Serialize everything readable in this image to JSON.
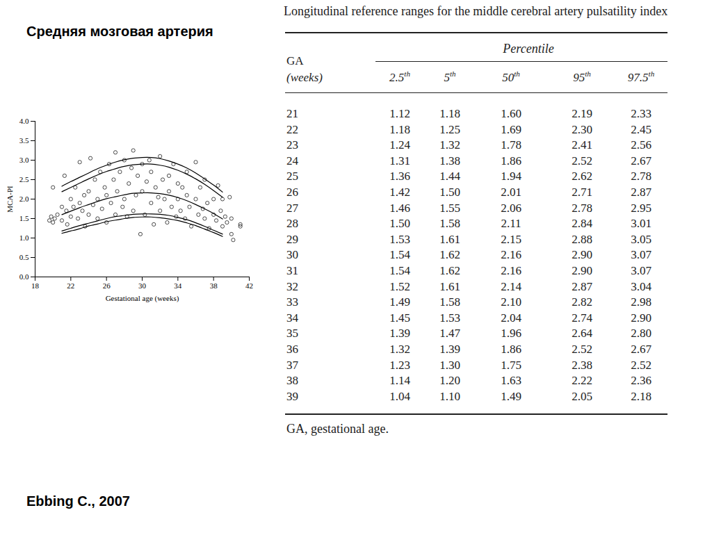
{
  "slide_title": "Средняя мозговая артерия",
  "citation": "Ebbing C., 2007",
  "chart_data": {
    "type": "scatter",
    "x_label": "Gestational age (weeks)",
    "y_label": "MCA-PI",
    "xlim": [
      18,
      42
    ],
    "xticks": [
      18,
      22,
      26,
      30,
      34,
      38,
      42
    ],
    "ylim": [
      0,
      4
    ],
    "yticks": [
      {
        "value": 0,
        "label": "0.0"
      },
      {
        "value": 0.5,
        "label": "0.5"
      },
      {
        "value": 1,
        "label": "1.0"
      },
      {
        "value": 1.5,
        "label": "1.5"
      },
      {
        "value": 2,
        "label": "2.0"
      },
      {
        "value": 2.5,
        "label": "2.5"
      },
      {
        "value": 3,
        "label": "3.0"
      },
      {
        "value": 3.5,
        "label": "3.5"
      },
      {
        "value": 4,
        "label": "4.0"
      }
    ],
    "grid": false,
    "series": [
      {
        "type": "scatter",
        "marker": "circle",
        "color": "#000000",
        "x": [
          19.6,
          19.8,
          20,
          20.2,
          20,
          20.5,
          21,
          21,
          21.3,
          21.5,
          21.6,
          22,
          22,
          22.3,
          22.5,
          22.8,
          23,
          23,
          23.3,
          23.5,
          23.6,
          24,
          24,
          24.2,
          24.5,
          24.7,
          25,
          25,
          25.3,
          25.5,
          25.8,
          26,
          26,
          26.3,
          26.5,
          26.8,
          27,
          27,
          27.2,
          27.5,
          27.8,
          28,
          28,
          28.3,
          28.5,
          28.8,
          29,
          29,
          29.3,
          29.5,
          29.8,
          30,
          30,
          30.3,
          30.5,
          30.8,
          31,
          31,
          31.3,
          31.5,
          31.8,
          32,
          32,
          32.3,
          32.5,
          32.8,
          33,
          33,
          33.3,
          33.5,
          33.8,
          34,
          34,
          34.3,
          34.5,
          34.8,
          35,
          35,
          35.3,
          35.5,
          36,
          36,
          36.3,
          36.5,
          36.8,
          37,
          37,
          37.3,
          37.5,
          38,
          38,
          38.3,
          38.5,
          38.8,
          39,
          39,
          39.3,
          39.5,
          39.8,
          40,
          40,
          40.2,
          41,
          41
        ],
        "values": [
          1.45,
          1.55,
          1.4,
          1.5,
          2.3,
          1.6,
          1.45,
          1.8,
          2.6,
          1.7,
          1.35,
          2.0,
          1.55,
          1.8,
          2.3,
          1.5,
          1.9,
          2.95,
          1.7,
          2.1,
          1.3,
          2.2,
          1.6,
          3.05,
          1.85,
          2.5,
          1.5,
          2.0,
          2.7,
          1.75,
          2.3,
          1.4,
          2.1,
          2.9,
          1.9,
          2.5,
          3.2,
          1.6,
          2.2,
          2.7,
          1.8,
          2.0,
          3.0,
          1.55,
          2.4,
          2.8,
          1.7,
          3.25,
          2.1,
          2.6,
          1.1,
          2.2,
          2.9,
          1.6,
          2.45,
          3.0,
          1.9,
          2.7,
          1.35,
          2.3,
          2.05,
          3.1,
          1.7,
          2.5,
          2.0,
          1.4,
          2.6,
          2.2,
          1.8,
          2.9,
          1.55,
          2.4,
          2.0,
          1.7,
          2.3,
          1.5,
          2.1,
          2.7,
          1.8,
          1.3,
          2.0,
          2.95,
          1.6,
          2.3,
          1.75,
          1.5,
          2.5,
          1.9,
          1.25,
          2.0,
          1.6,
          1.45,
          2.35,
          1.7,
          1.3,
          2.0,
          1.55,
          1.4,
          2.05,
          1.1,
          1.5,
          0.95,
          1.35,
          1.3
        ]
      },
      {
        "type": "line",
        "line_style": "solid",
        "color": "#000000",
        "x": [
          21,
          22,
          23,
          24,
          25,
          26,
          27,
          28,
          29,
          30,
          31,
          32,
          33,
          34,
          35,
          36,
          37,
          38,
          39
        ],
        "values": [
          1.12,
          1.18,
          1.24,
          1.31,
          1.36,
          1.42,
          1.46,
          1.5,
          1.53,
          1.54,
          1.54,
          1.52,
          1.49,
          1.45,
          1.39,
          1.32,
          1.23,
          1.14,
          1.04
        ]
      },
      {
        "type": "line",
        "line_style": "solid",
        "color": "#000000",
        "x": [
          21,
          22,
          23,
          24,
          25,
          26,
          27,
          28,
          29,
          30,
          31,
          32,
          33,
          34,
          35,
          36,
          37,
          38,
          39
        ],
        "values": [
          1.18,
          1.25,
          1.32,
          1.38,
          1.44,
          1.5,
          1.55,
          1.58,
          1.61,
          1.62,
          1.62,
          1.61,
          1.58,
          1.53,
          1.47,
          1.39,
          1.3,
          1.2,
          1.1
        ]
      },
      {
        "type": "line",
        "line_style": "solid",
        "color": "#000000",
        "x": [
          21,
          22,
          23,
          24,
          25,
          26,
          27,
          28,
          29,
          30,
          31,
          32,
          33,
          34,
          35,
          36,
          37,
          38,
          39
        ],
        "values": [
          1.6,
          1.69,
          1.78,
          1.86,
          1.94,
          2.01,
          2.06,
          2.11,
          2.15,
          2.16,
          2.16,
          2.14,
          2.1,
          2.04,
          1.96,
          1.86,
          1.75,
          1.63,
          1.49
        ]
      },
      {
        "type": "line",
        "line_style": "solid",
        "color": "#000000",
        "x": [
          21,
          22,
          23,
          24,
          25,
          26,
          27,
          28,
          29,
          30,
          31,
          32,
          33,
          34,
          35,
          36,
          37,
          38,
          39
        ],
        "values": [
          2.19,
          2.3,
          2.41,
          2.52,
          2.62,
          2.71,
          2.78,
          2.84,
          2.88,
          2.9,
          2.9,
          2.87,
          2.82,
          2.74,
          2.64,
          2.52,
          2.38,
          2.22,
          2.05
        ]
      },
      {
        "type": "line",
        "line_style": "solid",
        "color": "#000000",
        "x": [
          21,
          22,
          23,
          24,
          25,
          26,
          27,
          28,
          29,
          30,
          31,
          32,
          33,
          34,
          35,
          36,
          37,
          38,
          39
        ],
        "values": [
          2.33,
          2.45,
          2.56,
          2.67,
          2.78,
          2.87,
          2.95,
          3.01,
          3.05,
          3.07,
          3.07,
          3.04,
          2.98,
          2.9,
          2.8,
          2.67,
          2.52,
          2.36,
          2.18
        ]
      }
    ]
  },
  "table": {
    "title": "Longitudinal reference ranges for the middle cerebral artery pulsatility index",
    "first_header": [
      "GA",
      "(weeks)"
    ],
    "group_header": "Percentile",
    "columns": [
      {
        "text": "2.5",
        "sup": "th"
      },
      {
        "text": "5",
        "sup": "th"
      },
      {
        "text": "50",
        "sup": "th"
      },
      {
        "text": "95",
        "sup": "th"
      },
      {
        "text": "97.5",
        "sup": "th"
      }
    ],
    "rows": [
      [
        "21",
        "1.12",
        "1.18",
        "1.60",
        "2.19",
        "2.33"
      ],
      [
        "22",
        "1.18",
        "1.25",
        "1.69",
        "2.30",
        "2.45"
      ],
      [
        "23",
        "1.24",
        "1.32",
        "1.78",
        "2.41",
        "2.56"
      ],
      [
        "24",
        "1.31",
        "1.38",
        "1.86",
        "2.52",
        "2.67"
      ],
      [
        "25",
        "1.36",
        "1.44",
        "1.94",
        "2.62",
        "2.78"
      ],
      [
        "26",
        "1.42",
        "1.50",
        "2.01",
        "2.71",
        "2.87"
      ],
      [
        "27",
        "1.46",
        "1.55",
        "2.06",
        "2.78",
        "2.95"
      ],
      [
        "28",
        "1.50",
        "1.58",
        "2.11",
        "2.84",
        "3.01"
      ],
      [
        "29",
        "1.53",
        "1.61",
        "2.15",
        "2.88",
        "3.05"
      ],
      [
        "30",
        "1.54",
        "1.62",
        "2.16",
        "2.90",
        "3.07"
      ],
      [
        "31",
        "1.54",
        "1.62",
        "2.16",
        "2.90",
        "3.07"
      ],
      [
        "32",
        "1.52",
        "1.61",
        "2.14",
        "2.87",
        "3.04"
      ],
      [
        "33",
        "1.49",
        "1.58",
        "2.10",
        "2.82",
        "2.98"
      ],
      [
        "34",
        "1.45",
        "1.53",
        "2.04",
        "2.74",
        "2.90"
      ],
      [
        "35",
        "1.39",
        "1.47",
        "1.96",
        "2.64",
        "2.80"
      ],
      [
        "36",
        "1.32",
        "1.39",
        "1.86",
        "2.52",
        "2.67"
      ],
      [
        "37",
        "1.23",
        "1.30",
        "1.75",
        "2.38",
        "2.52"
      ],
      [
        "38",
        "1.14",
        "1.20",
        "1.63",
        "2.22",
        "2.36"
      ],
      [
        "39",
        "1.04",
        "1.10",
        "1.49",
        "2.05",
        "2.18"
      ]
    ],
    "footnote": "GA, gestational age."
  }
}
